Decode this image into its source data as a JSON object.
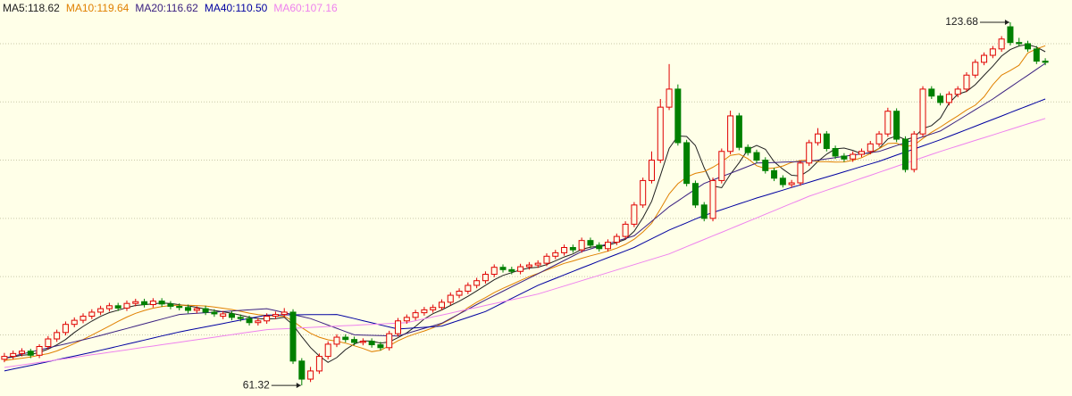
{
  "chart_data": {
    "type": "candlestick",
    "open": [
      65.8,
      66.3,
      66.8,
      67.2,
      66.5,
      68.0,
      69.3,
      70.4,
      71.8,
      72.5,
      73.2,
      73.9,
      74.5,
      75.0,
      74.6,
      75.4,
      75.7,
      75.2,
      75.8,
      75.3,
      74.9,
      74.7,
      74.2,
      74.5,
      73.9,
      73.2,
      73.6,
      73.0,
      72.8,
      72.1,
      72.4,
      73.2,
      73.5,
      73.9,
      65.5,
      62.4,
      63.8,
      66.3,
      68.4,
      69.6,
      69.2,
      68.7,
      68.9,
      68.3,
      67.8,
      70.2,
      72.4,
      73.0,
      73.8,
      74.3,
      74.7,
      75.6,
      76.8,
      77.5,
      78.5,
      79.3,
      80.4,
      81.6,
      81.2,
      80.9,
      81.7,
      82.0,
      82.3,
      83.5,
      84.1,
      85.0,
      84.6,
      86.2,
      85.4,
      84.8,
      85.9,
      86.9,
      89.0,
      92.3,
      96.5,
      100.0,
      109.1,
      112.2,
      103.0,
      96.0,
      92.3,
      90.0,
      96.5,
      101.5,
      107.6,
      102.2,
      101.3,
      100.0,
      98.2,
      96.9,
      95.8,
      96.1,
      99.5,
      103.0,
      104.5,
      102.0,
      100.7,
      100.2,
      101.0,
      101.5,
      102.8,
      104.5,
      108.4,
      103.6,
      98.4,
      104.5,
      112.2,
      111.0,
      109.9,
      111.3,
      112.2,
      114.6,
      116.8,
      118.0,
      119.1,
      122.9,
      120.2,
      120.0,
      119.1,
      117.0
    ],
    "high": [
      66.9,
      67.3,
      67.7,
      67.6,
      68.4,
      69.8,
      70.9,
      72.3,
      73.0,
      73.7,
      74.4,
      75.0,
      75.5,
      75.5,
      75.9,
      76.2,
      76.2,
      76.3,
      76.3,
      75.8,
      75.4,
      75.2,
      74.9,
      75.0,
      74.4,
      74.1,
      74.1,
      73.5,
      73.3,
      72.9,
      73.7,
      74.0,
      74.6,
      74.4,
      66.0,
      64.5,
      66.8,
      68.9,
      70.1,
      70.1,
      69.7,
      69.4,
      69.4,
      68.8,
      70.7,
      72.9,
      73.5,
      74.3,
      74.8,
      75.2,
      76.1,
      77.3,
      78.0,
      79.0,
      79.8,
      80.9,
      82.1,
      82.1,
      81.7,
      82.2,
      82.5,
      82.8,
      84.0,
      84.6,
      85.5,
      85.5,
      86.7,
      86.7,
      85.9,
      86.4,
      87.4,
      89.5,
      92.8,
      97.0,
      101.5,
      110.5,
      116.5,
      113.0,
      103.5,
      96.5,
      92.8,
      97.0,
      102.0,
      108.5,
      108.1,
      102.7,
      101.8,
      100.5,
      98.7,
      97.4,
      96.6,
      100.0,
      103.5,
      105.5,
      105.0,
      102.5,
      101.2,
      101.5,
      102.0,
      103.3,
      105.0,
      109.0,
      108.9,
      104.1,
      105.0,
      112.7,
      112.7,
      111.5,
      111.8,
      112.7,
      115.1,
      117.3,
      118.5,
      119.6,
      121.3,
      123.68,
      121.0,
      120.5,
      119.6,
      117.5
    ],
    "low": [
      65.3,
      65.8,
      66.3,
      66.0,
      66.0,
      67.5,
      68.8,
      69.9,
      71.3,
      72.0,
      72.7,
      73.4,
      74.0,
      74.1,
      74.1,
      74.9,
      74.7,
      74.7,
      74.8,
      74.4,
      74.2,
      73.7,
      73.7,
      73.4,
      73.1,
      72.7,
      72.5,
      72.3,
      71.6,
      71.6,
      71.9,
      72.7,
      73.0,
      65.0,
      61.32,
      61.9,
      63.3,
      65.8,
      67.9,
      68.7,
      68.2,
      68.2,
      67.8,
      67.3,
      67.3,
      69.7,
      71.9,
      72.5,
      73.3,
      73.8,
      74.2,
      75.1,
      76.3,
      77.0,
      78.0,
      78.8,
      79.9,
      80.7,
      80.4,
      80.4,
      81.2,
      81.5,
      81.8,
      83.0,
      83.6,
      84.1,
      84.1,
      84.9,
      84.3,
      84.3,
      85.4,
      86.4,
      88.5,
      91.8,
      96.0,
      99.5,
      108.6,
      102.5,
      95.5,
      91.8,
      89.5,
      89.5,
      96.0,
      101.0,
      101.7,
      100.8,
      99.5,
      97.7,
      96.4,
      95.3,
      95.3,
      95.6,
      99.0,
      102.5,
      101.5,
      100.2,
      99.7,
      99.7,
      100.5,
      101.0,
      102.3,
      104.0,
      103.1,
      97.9,
      97.9,
      104.0,
      110.5,
      109.4,
      109.4,
      110.8,
      111.7,
      114.1,
      116.3,
      117.5,
      118.6,
      119.7,
      119.5,
      118.6,
      116.5,
      116.3
    ],
    "close": [
      66.3,
      66.8,
      67.2,
      66.5,
      68.0,
      69.3,
      70.4,
      71.8,
      72.5,
      73.2,
      73.9,
      74.5,
      75.0,
      74.6,
      75.4,
      75.7,
      75.2,
      75.8,
      75.3,
      74.9,
      74.7,
      74.2,
      74.5,
      73.9,
      73.6,
      73.6,
      73.0,
      72.8,
      72.1,
      72.4,
      73.2,
      73.5,
      73.9,
      65.5,
      62.4,
      63.8,
      66.3,
      68.4,
      69.6,
      69.2,
      68.7,
      68.9,
      68.3,
      67.8,
      70.2,
      72.4,
      73.0,
      73.8,
      74.3,
      74.7,
      75.6,
      76.8,
      77.5,
      78.5,
      79.3,
      80.4,
      81.6,
      81.2,
      80.9,
      81.7,
      82.0,
      82.3,
      83.5,
      84.1,
      85.0,
      84.6,
      86.2,
      85.4,
      84.8,
      85.9,
      86.9,
      89.0,
      92.3,
      96.5,
      100.0,
      109.1,
      112.2,
      103.0,
      96.0,
      92.3,
      90.0,
      96.5,
      101.5,
      107.6,
      102.2,
      101.3,
      100.0,
      98.2,
      96.9,
      95.8,
      96.1,
      99.5,
      103.0,
      104.5,
      102.0,
      100.7,
      100.2,
      101.0,
      101.5,
      102.8,
      104.5,
      108.4,
      103.6,
      98.4,
      104.5,
      112.2,
      111.0,
      109.9,
      111.3,
      112.2,
      114.6,
      116.8,
      118.0,
      119.1,
      120.8,
      120.2,
      120.0,
      119.1,
      117.0,
      116.8
    ],
    "up_color": "#e00000",
    "down_color": "#008000",
    "series": [
      {
        "name": "MA5:118.62",
        "color": "#202020",
        "values": [
          66.0,
          66.2,
          66.5,
          66.6,
          67.0,
          67.56,
          68.28,
          69.2,
          70.4,
          71.44,
          72.36,
          73.18,
          73.82,
          74.24,
          74.68,
          75.04,
          75.18,
          75.34,
          75.48,
          75.38,
          75.18,
          74.98,
          74.72,
          74.44,
          74.18,
          73.96,
          73.72,
          73.38,
          73.02,
          72.78,
          72.7,
          72.8,
          73.02,
          71.7,
          69.7,
          67.82,
          66.38,
          65.28,
          66.1,
          67.46,
          68.44,
          68.96,
          68.94,
          68.58,
          68.78,
          69.52,
          70.34,
          71.44,
          72.74,
          73.64,
          74.28,
          75.04,
          75.78,
          76.62,
          77.54,
          78.5,
          79.46,
          80.2,
          80.68,
          81.16,
          81.48,
          81.62,
          82.08,
          82.72,
          83.38,
          83.9,
          84.68,
          85.06,
          85.2,
          85.38,
          85.84,
          86.4,
          87.78,
          90.12,
          92.94,
          97.38,
          102.02,
          104.16,
          104.06,
          102.52,
          98.7,
          95.56,
          95.26,
          97.58,
          99.56,
          101.82,
          102.52,
          101.86,
          99.72,
          98.44,
          97.4,
          97.3,
          98.26,
          99.78,
          101.02,
          101.94,
          102.08,
          101.68,
          101.08,
          101.24,
          102.0,
          103.64,
          104.16,
          103.54,
          103.88,
          105.42,
          105.94,
          107.2,
          109.78,
          111.32,
          111.8,
          112.96,
          114.58,
          116.14,
          117.86,
          118.98,
          119.62,
          119.84,
          119.42,
          118.62
        ]
      },
      {
        "name": "MA10:119.64",
        "color": "#e08000",
        "values": [
          65.6,
          65.8,
          66.0,
          66.2,
          66.5,
          66.78,
          67.24,
          67.85,
          68.5,
          69.2,
          69.96,
          70.73,
          71.51,
          72.32,
          73.06,
          73.7,
          74.18,
          74.58,
          74.86,
          75.03,
          75.11,
          75.08,
          75.03,
          74.96,
          74.78,
          74.57,
          74.35,
          74.05,
          73.73,
          73.48,
          73.33,
          73.26,
          73.2,
          72.36,
          71.24,
          70.26,
          69.59,
          69.15,
          68.9,
          68.58,
          68.13,
          67.67,
          67.11,
          67.34,
          68.12,
          68.98,
          69.65,
          70.19,
          70.66,
          71.21,
          71.9,
          72.69,
          73.61,
          74.68,
          75.59,
          76.39,
          77.25,
          77.99,
          78.65,
          79.35,
          79.99,
          80.54,
          81.14,
          81.7,
          82.27,
          82.69,
          83.15,
          83.57,
          83.96,
          84.38,
          84.87,
          85.54,
          86.42,
          87.66,
          89.16,
          91.61,
          94.21,
          95.97,
          97.09,
          97.73,
          98.04,
          98.79,
          99.71,
          100.82,
          101.04,
          100.26,
          99.04,
          98.56,
          98.65,
          99.0,
          99.61,
          99.91,
          100.06,
          99.75,
          99.73,
          99.67,
          99.69,
          99.97,
          100.43,
          101.13,
          101.97,
          102.86,
          102.92,
          102.31,
          102.56,
          103.71,
          104.79,
          105.68,
          106.66,
          107.6,
          108.61,
          109.45,
          110.89,
          112.96,
          114.59,
          115.39,
          116.29,
          118.4,
          119.1,
          119.64
        ]
      },
      {
        "name": "MA20:116.62",
        "color": "#3a2080",
        "values": [
          66,
          66.35,
          66.7,
          67.05,
          67.4,
          67.75,
          68.1,
          68.45,
          68.8,
          69.15,
          69.5,
          69.9,
          70.3,
          70.7,
          71.1,
          71.5,
          71.9,
          72.3,
          72.7,
          73.1,
          73.5,
          73.6,
          73.7,
          73.8,
          73.9,
          74,
          74.1,
          74.2,
          74.3,
          74.4,
          74.5,
          74.16,
          73.82,
          73.48,
          73.14,
          72.8,
          72.24,
          71.68,
          71.12,
          70.56,
          70,
          69.96,
          69.92,
          69.88,
          69.84,
          69.8,
          70.24,
          70.68,
          71.12,
          71.56,
          72,
          72.8,
          73.6,
          74.4,
          75.2,
          76,
          76.75,
          77.5,
          78.25,
          79,
          79.75,
          80.5,
          81.26,
          82.02,
          82.78,
          83.54,
          84.3,
          84.75,
          85.2,
          85.65,
          86.1,
          86.55,
          87,
          88.25,
          89.5,
          90.75,
          92,
          93,
          94,
          95,
          96,
          96.58,
          97.17,
          97.75,
          98.33,
          98.92,
          99.5,
          99.55,
          99.6,
          99.65,
          99.7,
          99.75,
          99.8,
          100.01,
          100.23,
          100.44,
          100.65,
          100.86,
          101.08,
          101.29,
          101.5,
          102,
          102.5,
          103,
          103.5,
          104,
          104.5,
          105,
          105.92,
          106.83,
          107.75,
          108.67,
          109.58,
          110.5,
          111.52,
          112.54,
          113.56,
          114.58,
          115.6,
          116.62
        ]
      },
      {
        "name": "MA40:110.50",
        "color": "#0000a0",
        "values": [
          63.8,
          64.12,
          64.44,
          64.76,
          65.08,
          65.4,
          65.72,
          66.04,
          66.36,
          66.68,
          67,
          67.35,
          67.7,
          68.05,
          68.4,
          68.75,
          69.1,
          69.45,
          69.8,
          70.15,
          70.5,
          70.79,
          71.08,
          71.37,
          71.66,
          71.95,
          72.24,
          72.53,
          72.82,
          73.11,
          73.4,
          73.41,
          73.43,
          73.44,
          73.45,
          73.46,
          73.48,
          73.49,
          73.5,
          73.14,
          72.79,
          72.43,
          72.07,
          71.71,
          71.36,
          71,
          71.1,
          71.2,
          71.3,
          71.4,
          71.5,
          72,
          72.5,
          73,
          73.5,
          74,
          74.75,
          75.5,
          76.25,
          77,
          77.75,
          78.5,
          79.1,
          79.7,
          80.3,
          80.9,
          81.5,
          82.08,
          82.67,
          83.25,
          83.83,
          84.42,
          85,
          85.75,
          86.5,
          87.25,
          88,
          88.63,
          89.25,
          89.88,
          90.5,
          91,
          91.5,
          92,
          92.5,
          93,
          93.5,
          93.95,
          94.4,
          94.85,
          95.3,
          95.75,
          96.2,
          96.65,
          97.1,
          97.55,
          98,
          98.45,
          98.9,
          99.35,
          99.8,
          100.33,
          100.86,
          101.39,
          101.91,
          102.44,
          102.97,
          103.5,
          104.08,
          104.67,
          105.25,
          105.83,
          106.42,
          107,
          107.58,
          108.17,
          108.75,
          109.33,
          109.92,
          110.5
        ]
      },
      {
        "name": "MA60:107.16",
        "color": "#ee82ee",
        "values": [
          64.4,
          64.62,
          64.83,
          65.05,
          65.27,
          65.48,
          65.7,
          65.92,
          66.13,
          66.35,
          66.57,
          66.78,
          67,
          67.22,
          67.43,
          67.65,
          67.87,
          68.08,
          68.3,
          68.52,
          68.73,
          68.95,
          69.17,
          69.38,
          69.6,
          69.82,
          70.03,
          70.25,
          70.47,
          70.68,
          70.9,
          70.98,
          71.05,
          71.13,
          71.2,
          71.28,
          71.35,
          71.43,
          71.5,
          71.58,
          71.65,
          71.73,
          71.8,
          71.88,
          71.95,
          72.03,
          72.1,
          72.43,
          72.75,
          73.08,
          73.41,
          73.73,
          74.06,
          74.39,
          74.71,
          75.04,
          75.37,
          75.69,
          76.02,
          76.35,
          76.67,
          77,
          77.46,
          77.92,
          78.38,
          78.84,
          79.3,
          79.76,
          80.22,
          80.68,
          81.14,
          81.6,
          82.06,
          82.52,
          82.98,
          83.44,
          83.9,
          84.52,
          85.14,
          85.76,
          86.38,
          87,
          87.61,
          88.23,
          88.85,
          89.47,
          90.09,
          90.71,
          91.33,
          91.95,
          92.56,
          93.18,
          93.8,
          94.31,
          94.83,
          95.34,
          95.85,
          96.37,
          96.88,
          97.39,
          97.91,
          98.42,
          98.93,
          99.45,
          99.96,
          100.47,
          100.99,
          101.5,
          101.97,
          102.44,
          102.92,
          103.39,
          103.86,
          104.33,
          104.8,
          105.27,
          105.75,
          106.22,
          106.69,
          107.16
        ]
      }
    ],
    "ylim": [
      59.5,
      127.5
    ],
    "yticks": [
      70,
      80,
      90,
      100,
      110,
      120
    ],
    "grid": true,
    "max_label": "123.68",
    "min_label": "61.32"
  }
}
